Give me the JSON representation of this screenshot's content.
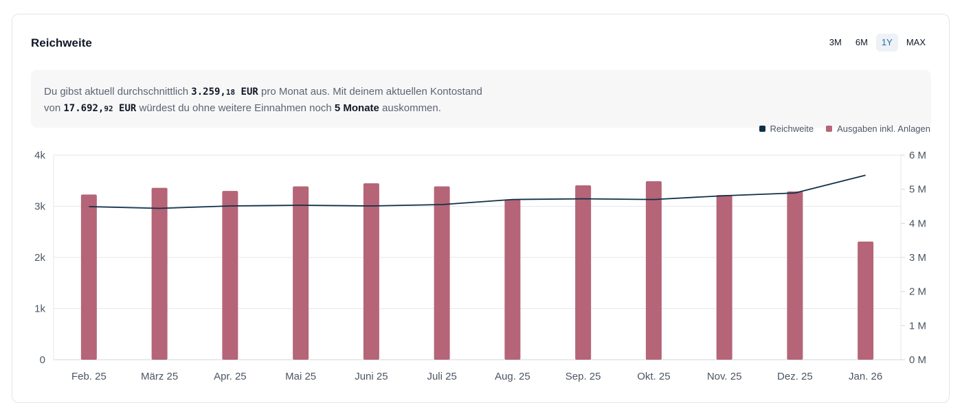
{
  "card": {
    "title": "Reichweite",
    "ranges": [
      "3M",
      "6M",
      "1Y",
      "MAX"
    ],
    "active_range": "1Y"
  },
  "info": {
    "part1": "Du gibst aktuell durchschnittlich ",
    "avg_int": "3.259,",
    "avg_cents": "18",
    "avg_cur": " EUR",
    "part2": " pro Monat aus. Mit deinem aktuellen Kontostand",
    "part3": "von ",
    "bal_int": "17.692,",
    "bal_cents": "92",
    "bal_cur": " EUR",
    "part4": " würdest du ohne weitere Einnahmen noch ",
    "months": "5 Monate",
    "part5": " auskommen."
  },
  "colors": {
    "bar": "#b56577",
    "line": "#0f2f47",
    "grid": "#e5e7eb"
  },
  "chart_data": {
    "type": "bar",
    "categories": [
      "Feb. 25",
      "März 25",
      "Apr. 25",
      "Mai 25",
      "Juni 25",
      "Juli 25",
      "Aug. 25",
      "Sep. 25",
      "Okt. 25",
      "Nov. 25",
      "Dez. 25",
      "Jan. 26"
    ],
    "series": [
      {
        "name": "Ausgaben inkl. Anlagen",
        "type": "bar",
        "axis": "left",
        "values": [
          3230,
          3360,
          3300,
          3390,
          3450,
          3390,
          3130,
          3410,
          3490,
          3220,
          3290,
          2310
        ]
      },
      {
        "name": "Reichweite",
        "type": "line",
        "axis": "right",
        "values": [
          4.49,
          4.44,
          4.51,
          4.53,
          4.51,
          4.55,
          4.7,
          4.72,
          4.7,
          4.81,
          4.89,
          5.41
        ]
      }
    ],
    "ylim_left": [
      0,
      4000
    ],
    "yticks_left": [
      "0",
      "1k",
      "2k",
      "3k",
      "4k"
    ],
    "ylim_right": [
      0,
      6
    ],
    "yticks_right": [
      "0 M",
      "1 M",
      "2 M",
      "3 M",
      "4 M",
      "5 M",
      "6 M"
    ],
    "legend": [
      "Reichweite",
      "Ausgaben inkl. Anlagen"
    ],
    "legend_position": "top-right",
    "grid": true
  }
}
